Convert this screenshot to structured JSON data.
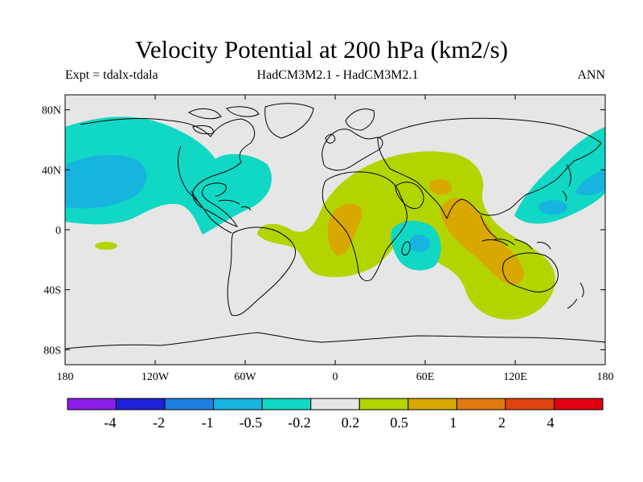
{
  "title": "Velocity Potential at 200 hPa (km2/s)",
  "subtitle_left": "Expt = tdalx-tdala",
  "subtitle_center": "HadCM3M2.1 - HadCM3M2.1",
  "subtitle_right": "ANN",
  "colors": {
    "land_background": "#e6e6e6",
    "coast": "#000000",
    "bins": [
      "#8a1ee6",
      "#2020d8",
      "#1f7fe0",
      "#18b4e0",
      "#10d8c4",
      "#e6e6e6",
      "#b4d400",
      "#d8a800",
      "#e07a10",
      "#e04410",
      "#e00010"
    ]
  },
  "chart_data": {
    "type": "heatmap",
    "variable": "Velocity Potential at 200 hPa",
    "units": "km2/s",
    "lat_ticks": [
      "80N",
      "40N",
      "0",
      "40S",
      "80S"
    ],
    "lon_ticks": [
      "180",
      "120W",
      "60W",
      "0",
      "60E",
      "120E",
      "180"
    ],
    "lat_values": [
      80,
      40,
      0,
      -40,
      -80
    ],
    "lon_values": [
      -180,
      -120,
      -60,
      0,
      60,
      120,
      180
    ],
    "lat_range": [
      -90,
      90
    ],
    "lon_range": [
      -180,
      180
    ],
    "colorbar_levels": [
      "-4",
      "-2",
      "-1",
      "-0.5",
      "-0.2",
      "0.2",
      "0.5",
      "1",
      "2",
      "4"
    ],
    "regions": [
      {
        "name": "North Pacific/North America negative",
        "range": "-0.5 to -0.2"
      },
      {
        "name": "Northeast Pacific core",
        "range": "-1 to -0.5"
      },
      {
        "name": "Western Pacific negative",
        "range": "-0.5 to -0.2"
      },
      {
        "name": "South Indian Ocean negative",
        "range": "-1 to -0.5"
      },
      {
        "name": "Africa-Indian Ocean-Australia positive",
        "range": "0.2 to 0.5"
      },
      {
        "name": "Indian Ocean core",
        "range": "0.5 to 1"
      }
    ]
  }
}
